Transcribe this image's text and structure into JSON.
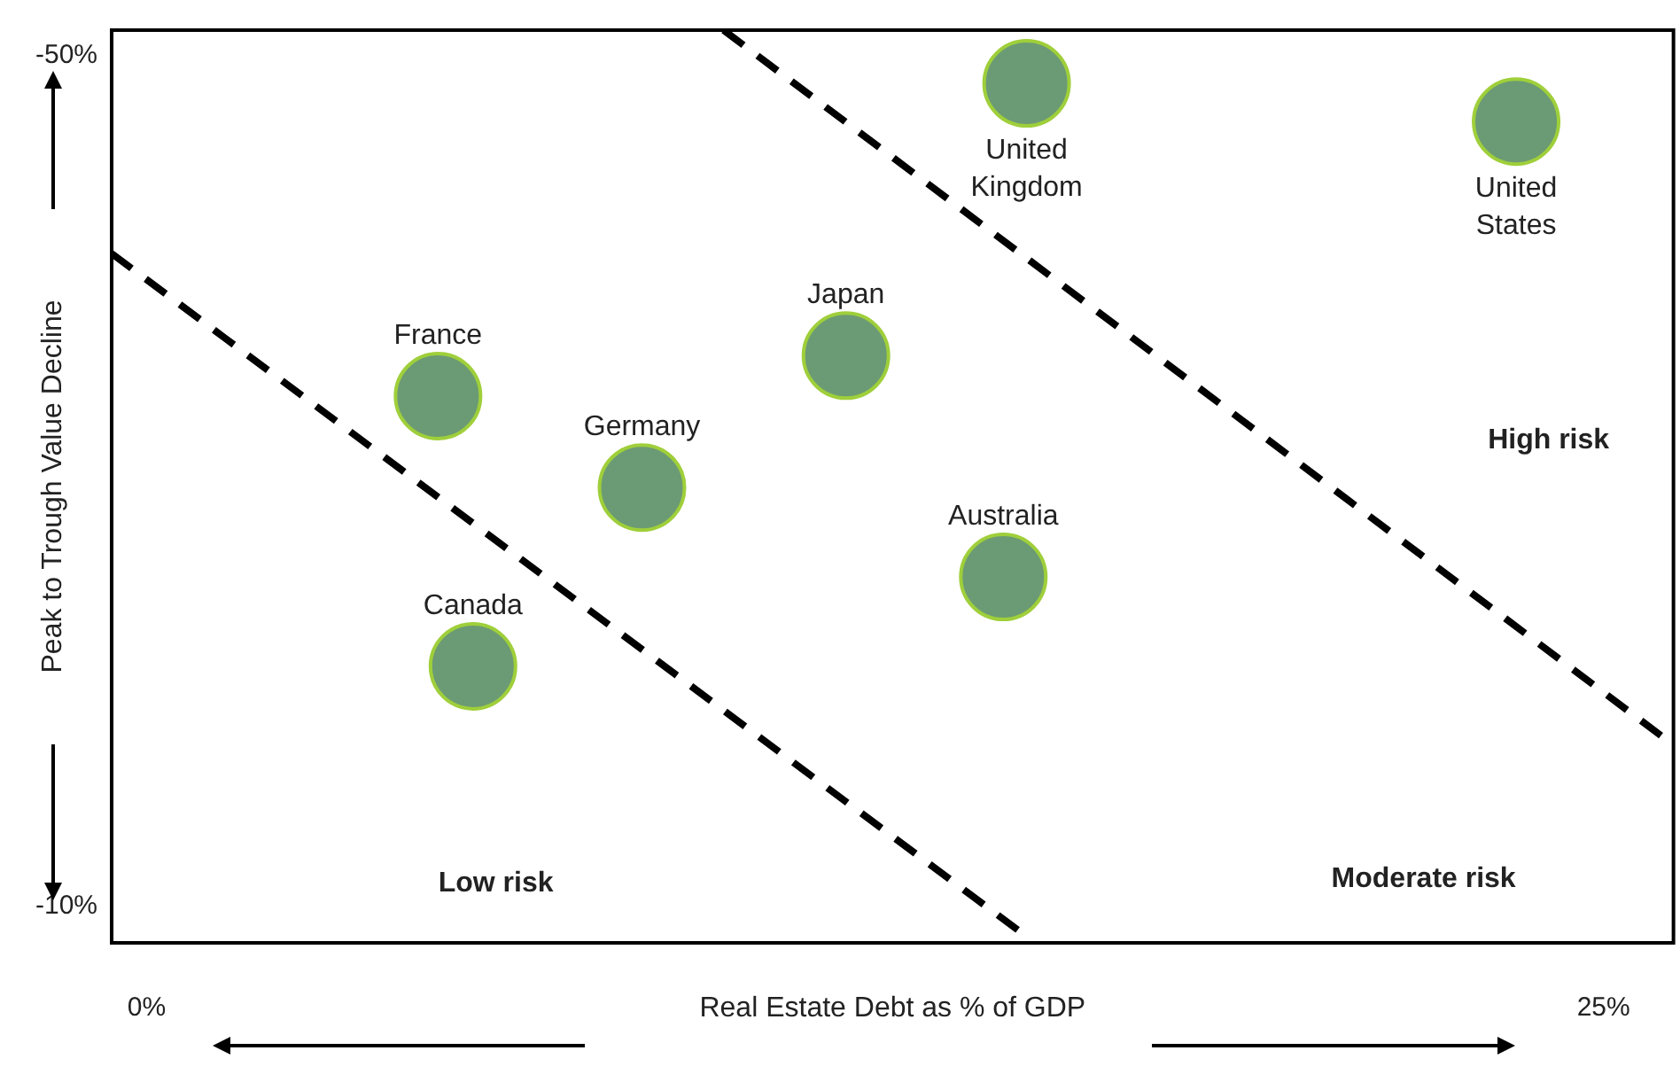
{
  "chart_data": {
    "type": "scatter",
    "xlabel": "Real Estate Debt as % of GDP",
    "ylabel": "Peak to Trough Value Decline",
    "xlim": [
      -0.6,
      26.2
    ],
    "ylim": [
      -8.3,
      -51.2
    ],
    "xticks": [
      {
        "value": 0,
        "label": "0%"
      },
      {
        "value": 25,
        "label": "25%"
      }
    ],
    "yticks": [
      {
        "value": -50,
        "label": "-50%"
      },
      {
        "value": -10,
        "label": "-10%"
      }
    ],
    "grid": false,
    "legend": false,
    "marker": "circle",
    "series": [
      {
        "name": "United Kingdom",
        "color": "#6b9b74",
        "x": [
          15.1
        ],
        "values": [
          -48.7
        ]
      },
      {
        "name": "United States",
        "color": "#6b9b74",
        "x": [
          23.5
        ],
        "values": [
          -46.9
        ]
      },
      {
        "name": "France",
        "color": "#6b9b74",
        "x": [
          5.0
        ],
        "values": [
          -34.0
        ]
      },
      {
        "name": "Germany",
        "color": "#6b9b74",
        "x": [
          8.5
        ],
        "values": [
          -29.7
        ]
      },
      {
        "name": "Japan",
        "color": "#6b9b74",
        "x": [
          12.0
        ],
        "values": [
          -35.9
        ]
      },
      {
        "name": "Australia",
        "color": "#6b9b74",
        "x": [
          14.7
        ],
        "values": [
          -25.5
        ]
      },
      {
        "name": "Canada",
        "color": "#6b9b74",
        "x": [
          5.6
        ],
        "values": [
          -21.3
        ]
      },
      {
        "type": "line",
        "color": "#000000",
        "line_style": "dashed",
        "marker": "none",
        "x": [
          -0.6,
          15.0
        ],
        "values": [
          -40.7,
          -8.8
        ]
      },
      {
        "type": "line",
        "color": "#000000",
        "line_style": "dashed",
        "marker": "none",
        "x": [
          9.9,
          26.2
        ],
        "values": [
          -51.2,
          -17.6
        ]
      }
    ],
    "annotations": [
      "Low risk",
      "Moderate risk",
      "High risk"
    ]
  }
}
